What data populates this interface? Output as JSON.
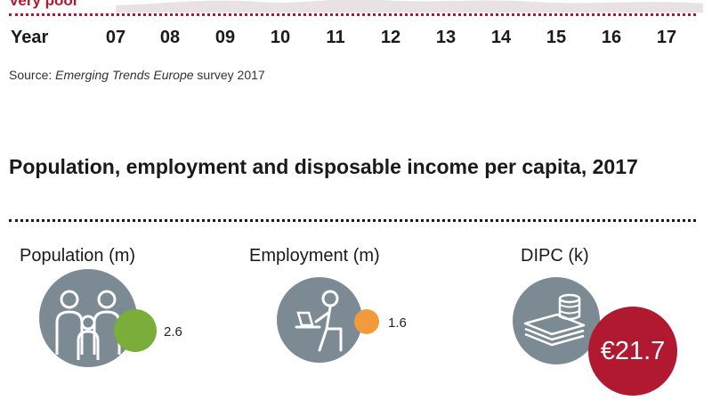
{
  "chart_remnant": {
    "rating_label": "Very poor",
    "year_axis_label": "Year",
    "years": [
      "07",
      "08",
      "09",
      "10",
      "11",
      "12",
      "13",
      "14",
      "15",
      "16",
      "17"
    ],
    "source_prefix": "Source: ",
    "source_title": "Emerging Trends Europe",
    "source_suffix": " survey 2017"
  },
  "section": {
    "title": "Population, employment and disposable income per capita, 2017"
  },
  "metrics": [
    {
      "label": "Population (m)",
      "value": "2.6",
      "icon": "family-icon",
      "color": "#7aad3a"
    },
    {
      "label": "Employment (m)",
      "value": "1.6",
      "icon": "worker-at-laptop-icon",
      "color": "#f39a3c"
    },
    {
      "label": "DIPC (k)",
      "value": "€21.7",
      "icon": "money-stack-icon",
      "color": "#b0192f"
    }
  ],
  "colors": {
    "accent_red": "#b0192f",
    "icon_grey": "#7c8a94",
    "population_green": "#7aad3a",
    "employment_orange": "#f39a3c"
  }
}
